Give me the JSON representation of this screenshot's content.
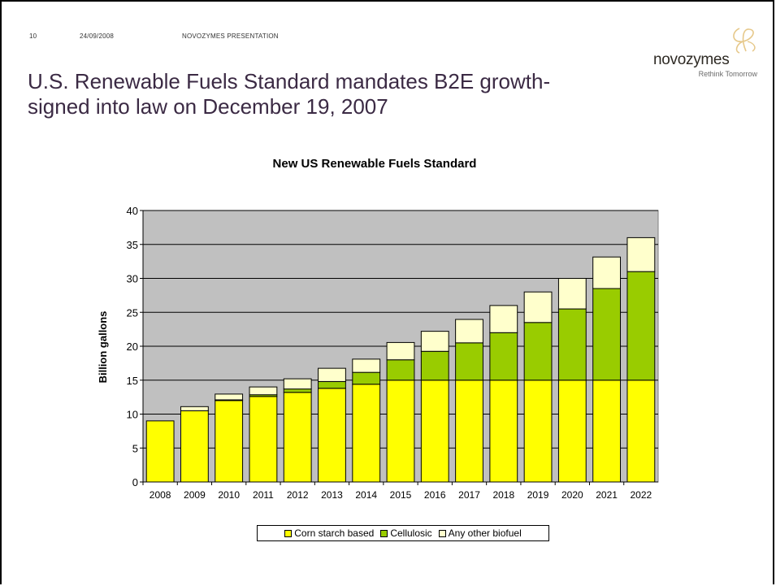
{
  "header": {
    "page_number": "10",
    "date": "24/09/2008",
    "presentation": "NOVOZYMES PRESENTATION"
  },
  "slide_title": "U.S. Renewable Fuels Standard mandates B2E growth- signed into law on December 19, 2007",
  "logo": {
    "wordmark": "novozymes",
    "tagline": "Rethink Tomorrow"
  },
  "colors": {
    "corn": "#ffff00",
    "cellulosic": "#99cc00",
    "other": "#ffffcc",
    "plot_bg": "#c0c0c0"
  },
  "chart_data": {
    "type": "bar",
    "stacked": true,
    "title": "New US Renewable Fuels Standard",
    "ylabel": "Billion gallons",
    "xlabel": "",
    "ylim": [
      0,
      40
    ],
    "yticks": [
      0,
      5,
      10,
      15,
      20,
      25,
      30,
      35,
      40
    ],
    "grid": true,
    "legend": "bottom",
    "categories": [
      "2008",
      "2009",
      "2010",
      "2011",
      "2012",
      "2013",
      "2014",
      "2015",
      "2016",
      "2017",
      "2018",
      "2019",
      "2020",
      "2021",
      "2022"
    ],
    "series": [
      {
        "name": "Corn starch based",
        "values": [
          9.0,
          10.5,
          12.0,
          12.6,
          13.2,
          13.8,
          14.4,
          15.0,
          15.0,
          15.0,
          15.0,
          15.0,
          15.0,
          15.0,
          15.0
        ]
      },
      {
        "name": "Cellulosic",
        "values": [
          0.0,
          0.0,
          0.1,
          0.25,
          0.5,
          1.0,
          1.75,
          3.0,
          4.25,
          5.5,
          7.0,
          8.5,
          10.5,
          13.5,
          16.0
        ]
      },
      {
        "name": "Any other biofuel",
        "values": [
          0.0,
          0.6,
          0.85,
          1.15,
          1.5,
          1.95,
          1.95,
          2.55,
          2.95,
          3.45,
          4.0,
          4.5,
          4.5,
          4.65,
          5.0
        ]
      }
    ]
  }
}
